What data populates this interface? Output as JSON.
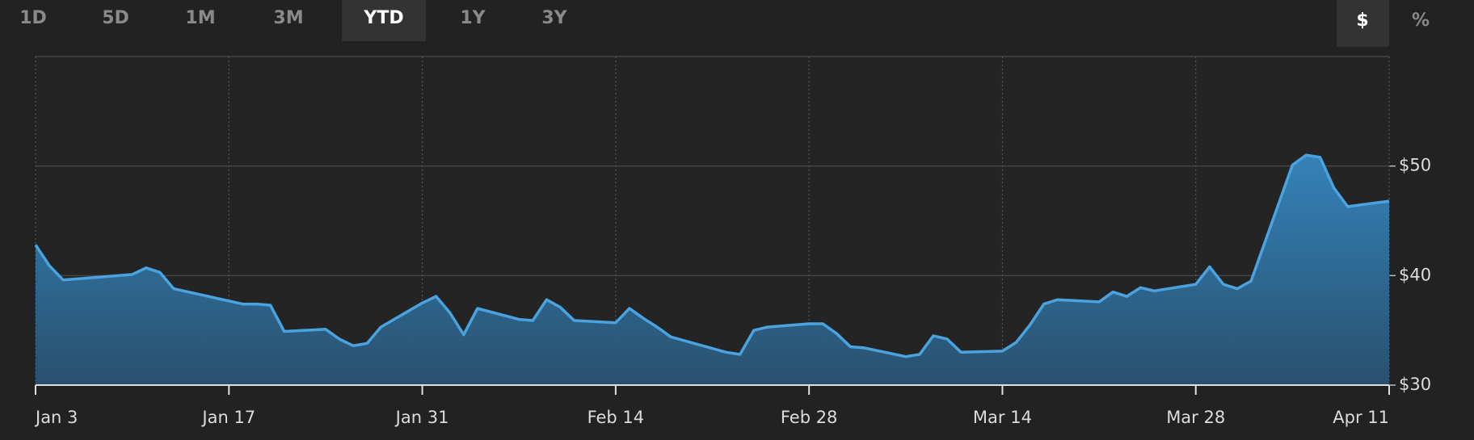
{
  "controls": {
    "ranges": [
      "1D",
      "5D",
      "1M",
      "3M",
      "YTD",
      "1Y",
      "3Y"
    ],
    "selected_range": 4,
    "units": [
      "$",
      "%"
    ],
    "selected_unit": 0
  },
  "chart_data": {
    "type": "area",
    "color": "#4aa3df",
    "x": [
      0,
      1,
      2,
      7,
      8,
      9,
      10,
      15,
      16,
      17,
      18,
      21,
      22,
      23,
      24,
      25,
      28,
      29,
      30,
      31,
      32,
      35,
      36,
      37,
      38,
      39,
      42,
      43,
      44,
      45,
      46,
      50,
      51,
      52,
      53,
      56,
      57,
      58,
      59,
      60,
      63,
      64,
      65,
      66,
      67,
      70,
      71,
      72,
      73,
      74,
      77,
      78,
      79,
      80,
      81,
      84,
      85,
      86,
      87,
      88,
      91,
      92,
      93,
      94,
      95,
      98
    ],
    "values": [
      42.8,
      40.9,
      39.6,
      40.1,
      40.7,
      40.3,
      38.8,
      37.4,
      37.4,
      37.3,
      34.9,
      35.1,
      34.2,
      33.6,
      33.8,
      35.3,
      37.5,
      38.1,
      36.6,
      34.6,
      37.0,
      36.0,
      35.9,
      37.8,
      37.1,
      35.9,
      35.7,
      37.0,
      36.1,
      35.3,
      34.4,
      33.0,
      32.8,
      35.0,
      35.3,
      35.6,
      35.6,
      34.7,
      33.5,
      33.4,
      32.6,
      32.8,
      34.5,
      34.2,
      33.0,
      33.1,
      33.9,
      35.5,
      37.4,
      37.8,
      37.6,
      38.5,
      38.1,
      38.9,
      38.6,
      39.2,
      40.8,
      39.2,
      38.8,
      39.5,
      50.1,
      51.0,
      50.8,
      48.0,
      46.3,
      46.8
    ],
    "xlim": [
      0,
      98
    ],
    "xticks": [
      {
        "value": 0,
        "label": "Jan 3"
      },
      {
        "value": 14,
        "label": "Jan 17"
      },
      {
        "value": 28,
        "label": "Jan 31"
      },
      {
        "value": 42,
        "label": "Feb 14"
      },
      {
        "value": 56,
        "label": "Feb 28"
      },
      {
        "value": 70,
        "label": "Mar 14"
      },
      {
        "value": 84,
        "label": "Mar 28"
      },
      {
        "value": 98,
        "label": "Apr 11"
      }
    ],
    "ylim": [
      30,
      60
    ],
    "yticks": [
      {
        "value": 30,
        "label": "$30"
      },
      {
        "value": 40,
        "label": "$40"
      },
      {
        "value": 50,
        "label": "$50"
      }
    ],
    "grid": true
  }
}
